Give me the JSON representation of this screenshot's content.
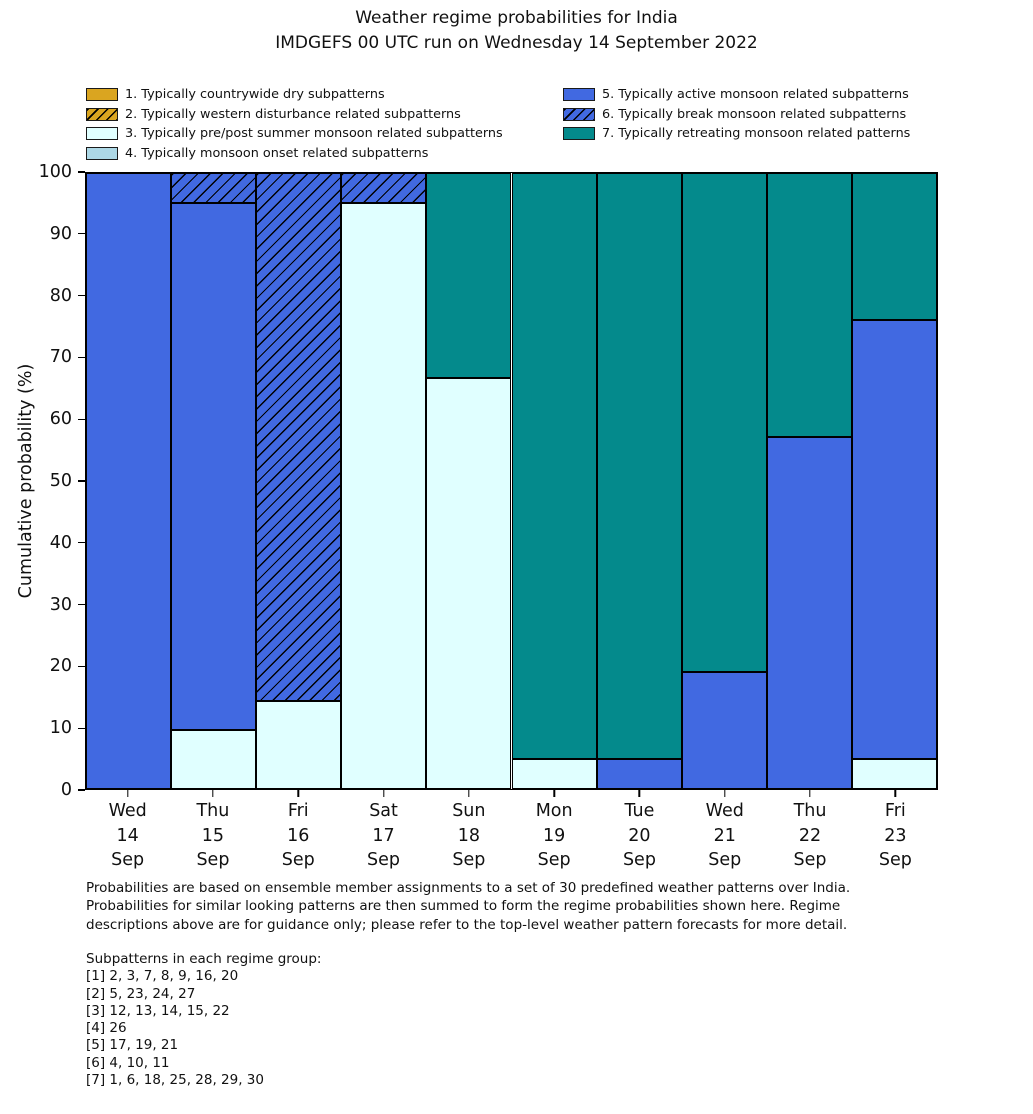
{
  "title": "Weather regime probabilities for India",
  "subtitle": "IMDGEFS 00 UTC run on Wednesday 14 September 2022",
  "colors": {
    "regime1": "#DAA520",
    "regime2": "#DAA520",
    "regime3": "#E0FFFF",
    "regime4": "#ADD8E6",
    "regime5": "#4169E1",
    "regime6": "#4169E1",
    "regime7": "#048A8C",
    "edge": "#000000"
  },
  "legend": {
    "columns": [
      [
        0,
        1,
        2,
        3
      ],
      [
        4,
        5,
        6
      ]
    ],
    "items": [
      {
        "label": "1. Typically countrywide dry subpatterns",
        "color": "#DAA520",
        "hatch": false
      },
      {
        "label": "2. Typically western disturbance related subpatterns",
        "color": "#DAA520",
        "hatch": true
      },
      {
        "label": "3. Typically pre/post summer monsoon related subpatterns",
        "color": "#E0FFFF",
        "hatch": false
      },
      {
        "label": "4. Typically monsoon onset related subpatterns",
        "color": "#ADD8E6",
        "hatch": false
      },
      {
        "label": "5. Typically active monsoon related subpatterns",
        "color": "#4169E1",
        "hatch": false
      },
      {
        "label": "6. Typically break monsoon related subpatterns",
        "color": "#4169E1",
        "hatch": true
      },
      {
        "label": "7. Typically retreating monsoon related patterns",
        "color": "#048A8C",
        "hatch": false
      }
    ]
  },
  "chart_data": {
    "type": "bar",
    "stacked": true,
    "title": "Weather regime probabilities for India",
    "subtitle": "IMDGEFS 00 UTC run on Wednesday 14 September 2022",
    "xlabel": "",
    "ylabel": "Cumulative probability (%)",
    "ylim": [
      0,
      100
    ],
    "yticks": [
      0,
      10,
      20,
      30,
      40,
      50,
      60,
      70,
      80,
      90,
      100
    ],
    "grid": false,
    "legend_position": "top",
    "bar_width": 1.0,
    "categories": [
      [
        "Wed",
        "14",
        "Sep"
      ],
      [
        "Thu",
        "15",
        "Sep"
      ],
      [
        "Fri",
        "16",
        "Sep"
      ],
      [
        "Sat",
        "17",
        "Sep"
      ],
      [
        "Sun",
        "18",
        "Sep"
      ],
      [
        "Mon",
        "19",
        "Sep"
      ],
      [
        "Tue",
        "20",
        "Sep"
      ],
      [
        "Wed",
        "21",
        "Sep"
      ],
      [
        "Thu",
        "22",
        "Sep"
      ],
      [
        "Fri",
        "23",
        "Sep"
      ]
    ],
    "series": [
      {
        "name": "1. Typically countrywide dry subpatterns",
        "color": "#DAA520",
        "hatch": false,
        "values": [
          0,
          0,
          0,
          0,
          0,
          0,
          0,
          0,
          0,
          0
        ]
      },
      {
        "name": "2. Typically western disturbance related subpatterns",
        "color": "#DAA520",
        "hatch": true,
        "values": [
          0,
          0,
          0,
          0,
          0,
          0,
          0,
          0,
          0,
          0
        ]
      },
      {
        "name": "3. Typically pre/post summer monsoon related subpatterns",
        "color": "#E0FFFF",
        "hatch": false,
        "values": [
          0,
          9.5,
          14.3,
          95.2,
          66.7,
          4.8,
          0,
          0,
          0,
          4.8
        ]
      },
      {
        "name": "4. Typically monsoon onset related subpatterns",
        "color": "#ADD8E6",
        "hatch": false,
        "values": [
          0,
          0,
          0,
          0,
          0,
          0,
          0,
          0,
          0,
          0
        ]
      },
      {
        "name": "5. Typically active monsoon related subpatterns",
        "color": "#4169E1",
        "hatch": false,
        "values": [
          100,
          85.7,
          0,
          0,
          0,
          0,
          4.8,
          19.0,
          57.1,
          71.4
        ]
      },
      {
        "name": "6. Typically break monsoon related subpatterns",
        "color": "#4169E1",
        "hatch": true,
        "values": [
          0,
          4.8,
          85.7,
          4.8,
          0,
          0,
          0,
          0,
          0,
          0
        ]
      },
      {
        "name": "7. Typically retreating monsoon related patterns",
        "color": "#048A8C",
        "hatch": false,
        "values": [
          0,
          0,
          0,
          0,
          33.3,
          95.2,
          95.2,
          81.0,
          42.9,
          23.8
        ]
      }
    ]
  },
  "footer": {
    "note": "Probabilities are based on ensemble member assignments to a set of 30 predefined weather patterns over India.\nProbabilities for similar looking patterns are then summed to form the regime probabilities shown here. Regime\ndescriptions above are for guidance only; please refer to the top-level weather pattern forecasts for more detail.",
    "subpatterns_header": "Subpatterns in each regime group:",
    "subpatterns": [
      "[1] 2, 3, 7, 8, 9, 16, 20",
      "[2] 5, 23, 24, 27",
      "[3] 12, 13, 14, 15, 22",
      "[4] 26",
      "[5] 17, 19, 21",
      "[6] 4, 10, 11",
      "[7] 1, 6, 18, 25, 28, 29, 30"
    ]
  }
}
